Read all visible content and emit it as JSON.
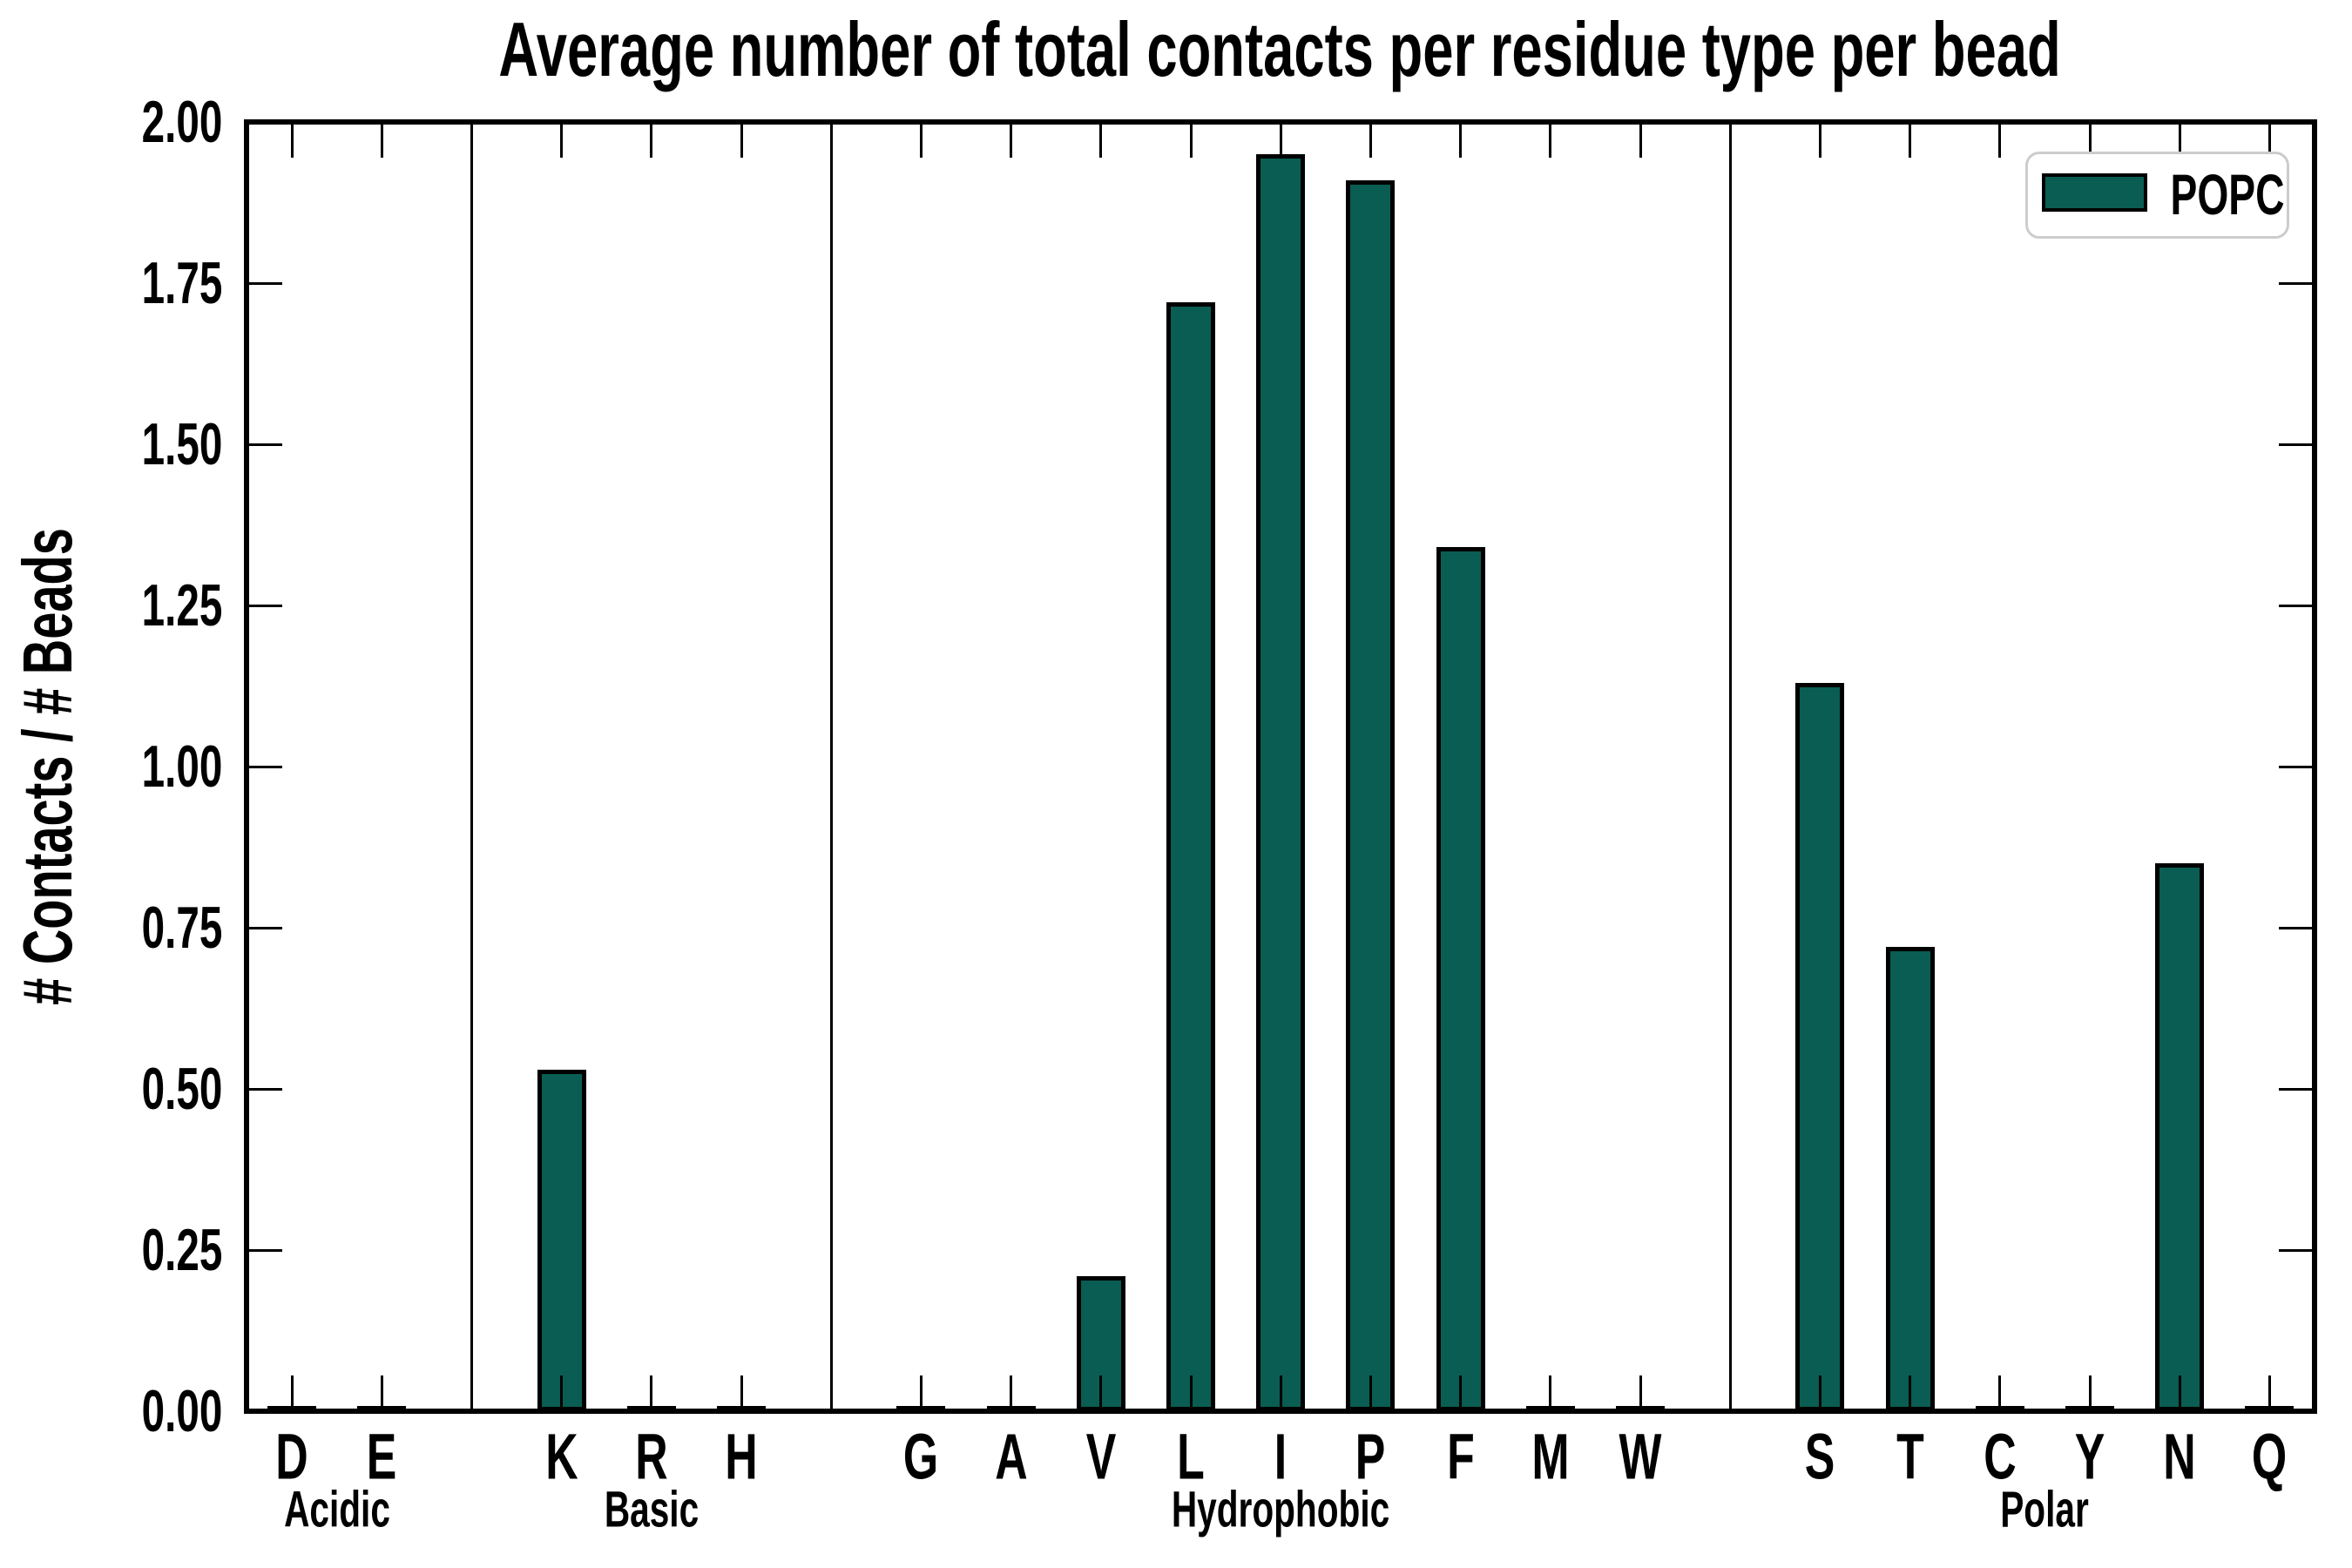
{
  "chart_data": {
    "type": "bar",
    "title": "Average number of total contacts per residue type per bead",
    "ylabel": "# Contacts / # Beads",
    "ylim": [
      0,
      2
    ],
    "yticks": [
      "0.00",
      "0.25",
      "0.50",
      "0.75",
      "1.00",
      "1.25",
      "1.50",
      "1.75",
      "2.00"
    ],
    "categories": [
      "D",
      "E",
      "K",
      "R",
      "H",
      "G",
      "A",
      "V",
      "L",
      "I",
      "P",
      "F",
      "M",
      "W",
      "S",
      "T",
      "C",
      "Y",
      "N",
      "Q"
    ],
    "values": [
      0,
      0,
      0.53,
      0,
      0,
      0,
      0,
      0.21,
      1.72,
      1.95,
      1.91,
      1.34,
      0,
      0,
      1.13,
      0.72,
      0,
      0,
      0.85,
      0
    ],
    "groups": [
      {
        "label": "Acidic",
        "count": 2
      },
      {
        "label": "Basic",
        "count": 3
      },
      {
        "label": "Hydrophobic",
        "count": 9
      },
      {
        "label": "Polar",
        "count": 6
      }
    ],
    "legend": [
      {
        "label": "POPC"
      }
    ],
    "legend_position": "upper right",
    "grid": false,
    "colors": {
      "bar_fill": "#0a5d52",
      "bar_edge": "#000000",
      "axis": "#000000",
      "text": "#000000",
      "legend_border": "#cccccc",
      "background": "#ffffff"
    }
  }
}
